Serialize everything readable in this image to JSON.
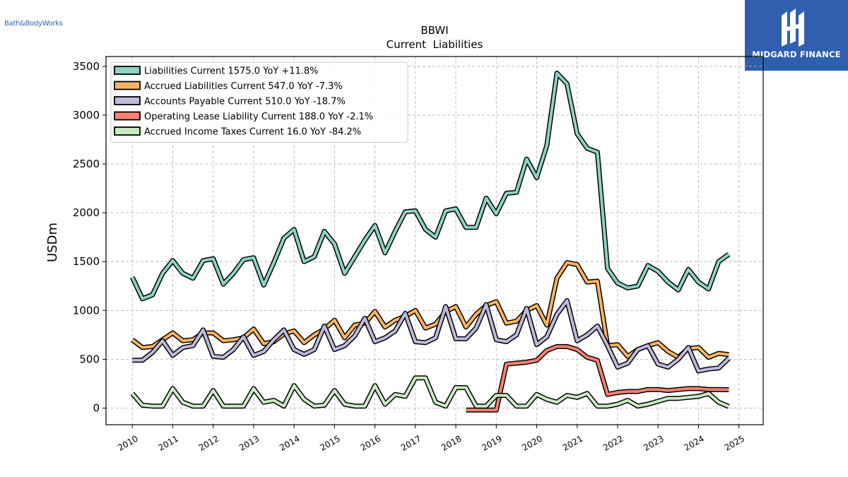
{
  "branding": {
    "left_logo_text": "Bath&BodyWorks",
    "right_logo_text": "MIDGARD FINANCE",
    "right_logo_bg": "#2f5fae"
  },
  "chart_data": {
    "type": "line",
    "title": "BBWI",
    "subtitle": "Current  Liabilities",
    "ylabel": "USDm",
    "xlabel": "",
    "ylim": [
      -170,
      3600
    ],
    "xlim": [
      2009.35,
      2025.6
    ],
    "yticks": [
      0,
      500,
      1000,
      1500,
      2000,
      2500,
      3000,
      3500
    ],
    "xticks": [
      "2010",
      "2011",
      "2012",
      "2013",
      "2014",
      "2015",
      "2016",
      "2017",
      "2018",
      "2019",
      "2020",
      "2021",
      "2022",
      "2023",
      "2024",
      "2025"
    ],
    "grid": true,
    "legend_position": "top-left",
    "series": [
      {
        "name": "Liabilities Current  1575.0 YoY +11.8%",
        "color": "#8dd3c7",
        "x": [
          2010.0,
          2010.25,
          2010.5,
          2010.75,
          2011.0,
          2011.25,
          2011.5,
          2011.75,
          2012.0,
          2012.25,
          2012.5,
          2012.75,
          2013.0,
          2013.25,
          2013.5,
          2013.75,
          2014.0,
          2014.25,
          2014.5,
          2014.75,
          2015.0,
          2015.25,
          2015.5,
          2015.75,
          2016.0,
          2016.25,
          2016.5,
          2016.75,
          2017.0,
          2017.25,
          2017.5,
          2017.75,
          2018.0,
          2018.25,
          2018.5,
          2018.75,
          2019.0,
          2019.25,
          2019.5,
          2019.75,
          2020.0,
          2020.25,
          2020.5,
          2020.75,
          2021.0,
          2021.25,
          2021.5,
          2021.75,
          2022.0,
          2022.25,
          2022.5,
          2022.75,
          2023.0,
          2023.25,
          2023.5,
          2023.75,
          2024.0,
          2024.25,
          2024.5,
          2024.75
        ],
        "values": [
          1340,
          1120,
          1160,
          1380,
          1510,
          1380,
          1330,
          1510,
          1530,
          1270,
          1380,
          1520,
          1540,
          1260,
          1490,
          1740,
          1830,
          1500,
          1550,
          1810,
          1680,
          1380,
          1550,
          1720,
          1870,
          1590,
          1810,
          2010,
          2020,
          1830,
          1750,
          2020,
          2040,
          1850,
          1850,
          2150,
          1990,
          2200,
          2210,
          2550,
          2360,
          2690,
          3430,
          3320,
          2810,
          2660,
          2620,
          1430,
          1280,
          1230,
          1250,
          1460,
          1400,
          1290,
          1210,
          1420,
          1290,
          1220,
          1500,
          1575
        ]
      },
      {
        "name": "Accrued Liabilities Current  547.0 YoY -7.3%",
        "color": "#fdb462",
        "x": [
          2010.0,
          2010.25,
          2010.5,
          2010.75,
          2011.0,
          2011.25,
          2011.5,
          2011.75,
          2012.0,
          2012.25,
          2012.5,
          2012.75,
          2013.0,
          2013.25,
          2013.5,
          2013.75,
          2014.0,
          2014.25,
          2014.5,
          2014.75,
          2015.0,
          2015.25,
          2015.5,
          2015.75,
          2016.0,
          2016.25,
          2016.5,
          2016.75,
          2017.0,
          2017.25,
          2017.5,
          2017.75,
          2018.0,
          2018.25,
          2018.5,
          2018.75,
          2019.0,
          2019.25,
          2019.5,
          2019.75,
          2020.0,
          2020.25,
          2020.5,
          2020.75,
          2021.0,
          2021.25,
          2021.5,
          2021.75,
          2022.0,
          2022.25,
          2022.5,
          2022.75,
          2023.0,
          2023.25,
          2023.5,
          2023.75,
          2024.0,
          2024.25,
          2024.5,
          2024.75
        ],
        "values": [
          700,
          620,
          630,
          700,
          770,
          690,
          700,
          770,
          770,
          690,
          700,
          720,
          810,
          660,
          680,
          760,
          790,
          670,
          750,
          810,
          900,
          720,
          850,
          870,
          990,
          830,
          900,
          940,
          1000,
          820,
          860,
          990,
          1040,
          830,
          960,
          1050,
          1090,
          870,
          890,
          1000,
          1050,
          850,
          1330,
          1490,
          1470,
          1290,
          1300,
          640,
          650,
          530,
          600,
          640,
          670,
          580,
          520,
          610,
          620,
          520,
          560,
          547
        ]
      },
      {
        "name": "Accounts Payable Current  510.0 YoY -18.7%",
        "color": "#bebada",
        "x": [
          2010.0,
          2010.25,
          2010.5,
          2010.75,
          2011.0,
          2011.25,
          2011.5,
          2011.75,
          2012.0,
          2012.25,
          2012.5,
          2012.75,
          2013.0,
          2013.25,
          2013.5,
          2013.75,
          2014.0,
          2014.25,
          2014.5,
          2014.75,
          2015.0,
          2015.25,
          2015.5,
          2015.75,
          2016.0,
          2016.25,
          2016.5,
          2016.75,
          2017.0,
          2017.25,
          2017.5,
          2017.75,
          2018.0,
          2018.25,
          2018.5,
          2018.75,
          2019.0,
          2019.25,
          2019.5,
          2019.75,
          2020.0,
          2020.25,
          2020.5,
          2020.75,
          2021.0,
          2021.25,
          2021.5,
          2021.75,
          2022.0,
          2022.25,
          2022.5,
          2022.75,
          2023.0,
          2023.25,
          2023.5,
          2023.75,
          2024.0,
          2024.25,
          2024.5,
          2024.75
        ],
        "values": [
          490,
          490,
          570,
          690,
          540,
          620,
          640,
          800,
          530,
          520,
          600,
          730,
          540,
          580,
          700,
          800,
          600,
          550,
          600,
          840,
          600,
          640,
          740,
          920,
          680,
          720,
          790,
          970,
          680,
          670,
          720,
          1040,
          710,
          710,
          820,
          1060,
          700,
          680,
          750,
          1020,
          650,
          730,
          960,
          1100,
          690,
          750,
          840,
          640,
          420,
          460,
          600,
          640,
          450,
          420,
          500,
          620,
          380,
          400,
          410,
          510
        ]
      },
      {
        "name": "Operating Lease Liability Current  188.0 YoY -2.1%",
        "color": "#fb8072",
        "x": [
          2018.25,
          2018.5,
          2018.75,
          2019.0,
          2019.25,
          2019.5,
          2019.75,
          2020.0,
          2020.25,
          2020.5,
          2020.75,
          2021.0,
          2021.25,
          2021.5,
          2021.75,
          2022.0,
          2022.25,
          2022.5,
          2022.75,
          2023.0,
          2023.25,
          2023.5,
          2023.75,
          2024.0,
          2024.25,
          2024.5,
          2024.75
        ],
        "values": [
          -20,
          -20,
          -20,
          -20,
          450,
          460,
          470,
          490,
          590,
          630,
          630,
          600,
          520,
          490,
          140,
          160,
          170,
          170,
          190,
          190,
          180,
          190,
          200,
          200,
          190,
          190,
          188
        ]
      },
      {
        "name": "Accrued Income Taxes Current  16.0 YoY -84.2%",
        "color": "#ccebc5",
        "x": [
          2010.0,
          2010.25,
          2010.5,
          2010.75,
          2011.0,
          2011.25,
          2011.5,
          2011.75,
          2012.0,
          2012.25,
          2012.5,
          2012.75,
          2013.0,
          2013.25,
          2013.5,
          2013.75,
          2014.0,
          2014.25,
          2014.5,
          2014.75,
          2015.0,
          2015.25,
          2015.5,
          2015.75,
          2016.0,
          2016.25,
          2016.5,
          2016.75,
          2017.0,
          2017.25,
          2017.5,
          2017.75,
          2018.0,
          2018.25,
          2018.5,
          2018.75,
          2019.0,
          2019.25,
          2019.5,
          2019.75,
          2020.0,
          2020.25,
          2020.5,
          2020.75,
          2021.0,
          2021.25,
          2021.5,
          2021.75,
          2022.0,
          2022.25,
          2022.5,
          2022.75,
          2023.0,
          2023.25,
          2023.5,
          2023.75,
          2024.0,
          2024.25,
          2024.5,
          2024.75
        ],
        "values": [
          150,
          30,
          20,
          20,
          200,
          60,
          20,
          20,
          180,
          20,
          20,
          20,
          200,
          60,
          80,
          20,
          230,
          90,
          20,
          30,
          180,
          40,
          20,
          20,
          230,
          40,
          140,
          120,
          310,
          310,
          60,
          20,
          210,
          210,
          20,
          20,
          130,
          130,
          20,
          20,
          140,
          90,
          60,
          130,
          110,
          150,
          20,
          20,
          40,
          80,
          20,
          40,
          70,
          100,
          100,
          110,
          120,
          150,
          60,
          16
        ]
      }
    ]
  }
}
